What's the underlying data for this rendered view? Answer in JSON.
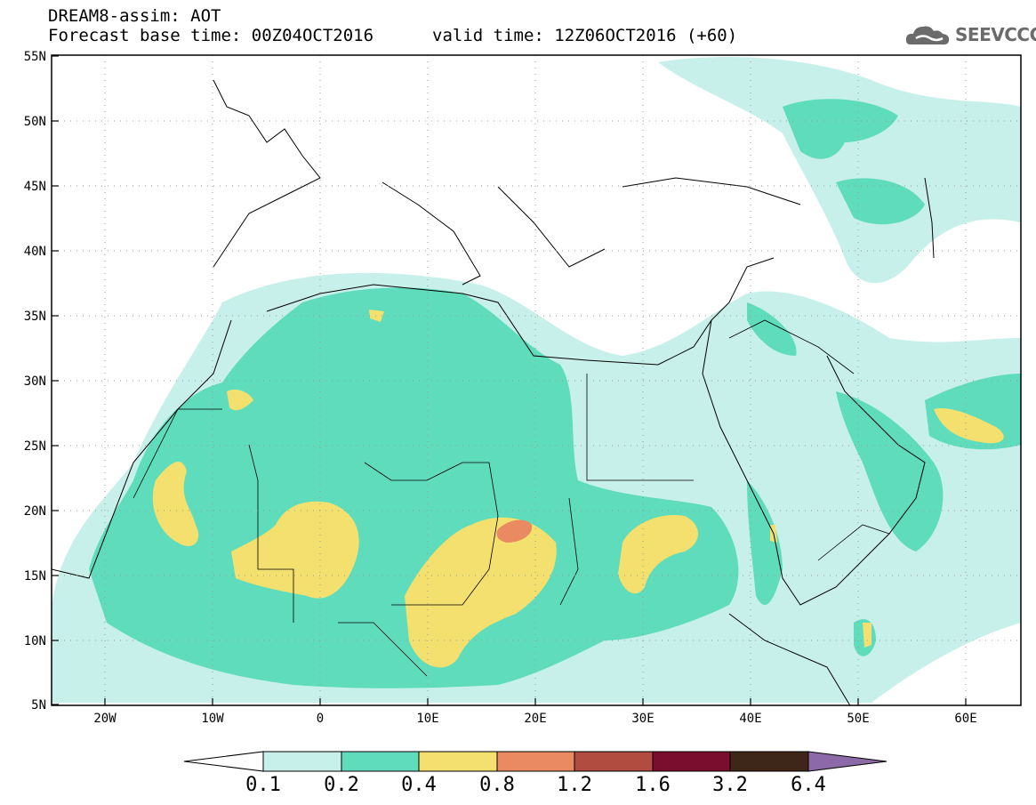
{
  "title": {
    "line1": "DREAM8-assim: AOT",
    "line2": "Forecast base time: 00Z04OCT2016",
    "valid": "valid time: 12Z06OCT2016 (+60)"
  },
  "logo": {
    "text": "SEEVCCC",
    "icon": "cloud-logo-icon"
  },
  "map": {
    "lon_range": [
      -25,
      65
    ],
    "lat_range": [
      5,
      55
    ],
    "lat_ticks": [
      "55N",
      "50N",
      "45N",
      "40N",
      "35N",
      "30N",
      "25N",
      "20N",
      "15N",
      "10N",
      "5N"
    ],
    "lon_ticks": [
      "20W",
      "10W",
      "0",
      "10E",
      "20E",
      "30E",
      "40E",
      "50E",
      "60E"
    ],
    "grid": true,
    "field": "Aerosol optical thickness"
  },
  "colorbar": {
    "labels": [
      "0.1",
      "0.2",
      "0.4",
      "0.8",
      "1.2",
      "1.6",
      "3.2",
      "6.4"
    ],
    "colors": [
      "#c8f0ea",
      "#5fdcbc",
      "#f3e06e",
      "#e98a63",
      "#b04c40",
      "#7a0e2e",
      "#3e2618",
      "#8c6aa8"
    ],
    "low_end_color": "#ffffff"
  }
}
